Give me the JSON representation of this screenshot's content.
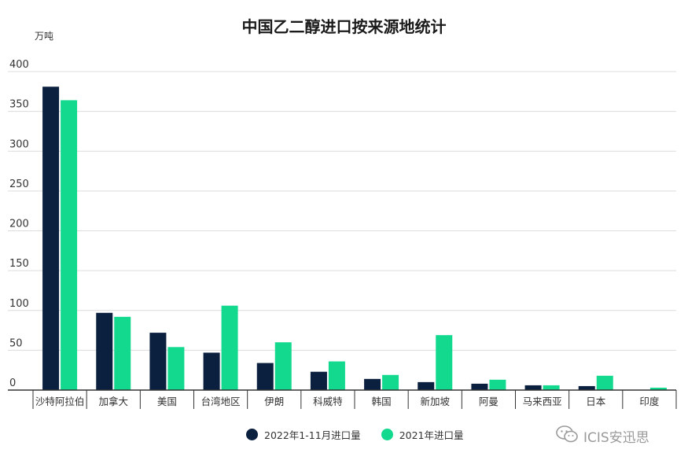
{
  "watermark": {
    "text": "ICIS安迅思",
    "icon": "wechat-icon"
  },
  "colors": {
    "series_2022": "#0b1f3f",
    "series_2021": "#12d98e",
    "grid": "#dcdcdc",
    "axis": "#333333"
  },
  "chart_data": {
    "type": "bar",
    "title": "中国乙二醇进口按来源地统计",
    "ylabel": "万吨",
    "xlabel": "",
    "ylim": [
      0,
      400
    ],
    "yticks": [
      0,
      50,
      100,
      150,
      200,
      250,
      300,
      350,
      400
    ],
    "grid": true,
    "legend_position": "bottom",
    "categories": [
      "沙特阿拉伯",
      "加拿大",
      "美国",
      "台湾地区",
      "伊朗",
      "科威特",
      "韩国",
      "新加坡",
      "阿曼",
      "马来西亚",
      "日本",
      "印度"
    ],
    "series": [
      {
        "name": "2022年1-11月进口量",
        "values": [
          381,
          97,
          72,
          47,
          34,
          23,
          14,
          10,
          8,
          6,
          5,
          0
        ]
      },
      {
        "name": "2021年进口量",
        "values": [
          364,
          92,
          54,
          106,
          60,
          36,
          19,
          69,
          13,
          6,
          18,
          3
        ]
      }
    ]
  }
}
